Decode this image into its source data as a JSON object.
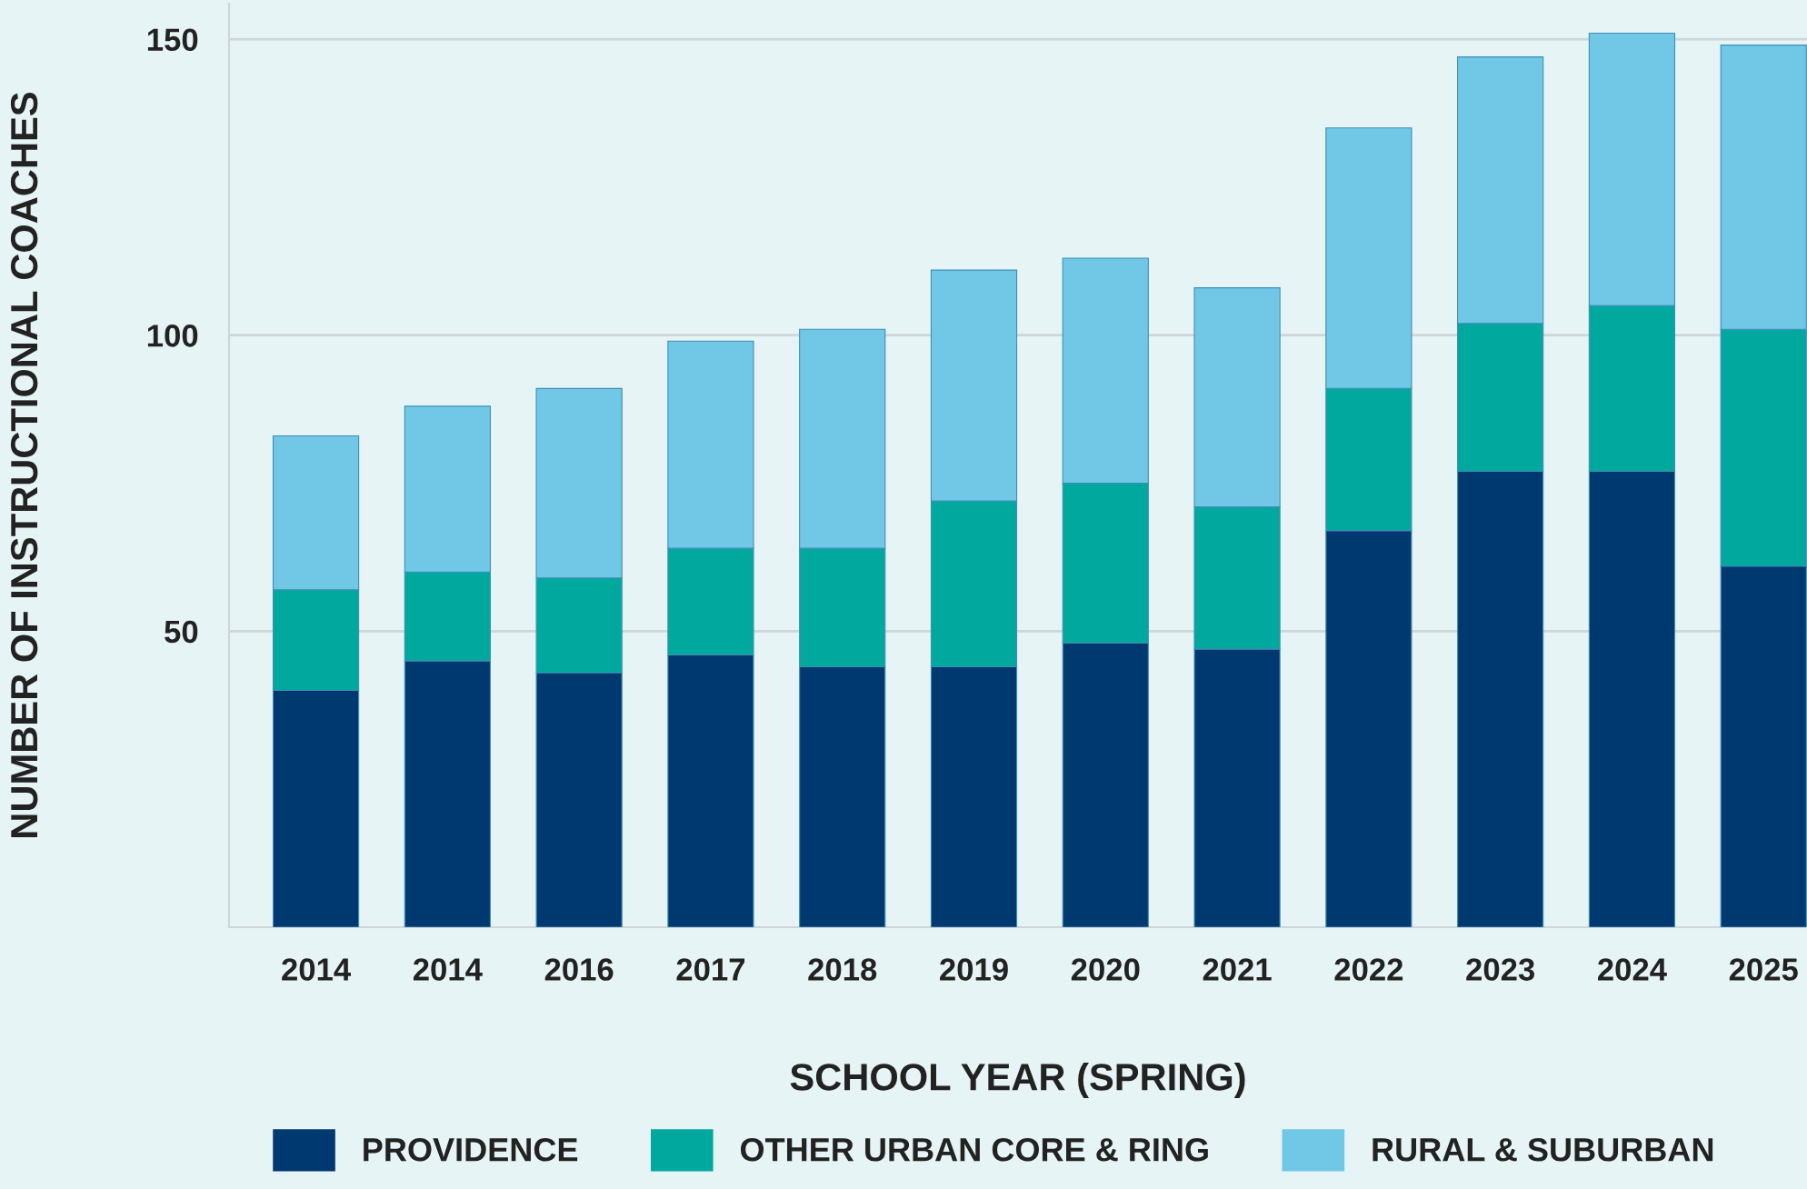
{
  "chart_data": {
    "type": "bar",
    "stacked": true,
    "xlabel": "SCHOOL YEAR (SPRING)",
    "ylabel": "NUMBER OF INSTRUCTIONAL COACHES",
    "categories": [
      "2014",
      "2014",
      "2016",
      "2017",
      "2018",
      "2019",
      "2020",
      "2021",
      "2022",
      "2023",
      "2024",
      "2025"
    ],
    "series": [
      {
        "name": "PROVIDENCE",
        "color": "#003870",
        "values": [
          40,
          45,
          43,
          46,
          44,
          44,
          48,
          47,
          67,
          77,
          77,
          61
        ]
      },
      {
        "name": "OTHER URBAN CORE & RING",
        "color": "#00a89d",
        "values": [
          17,
          15,
          16,
          18,
          20,
          28,
          27,
          24,
          24,
          25,
          28,
          40
        ]
      },
      {
        "name": "RURAL & SUBURBAN",
        "color": "#70c8e6",
        "values": [
          26,
          28,
          32,
          35,
          37,
          39,
          38,
          37,
          44,
          45,
          46,
          48
        ]
      }
    ],
    "ylim": [
      0,
      156
    ],
    "yticks": [
      50,
      100,
      150
    ],
    "grid": "y",
    "legend": "bottom"
  }
}
